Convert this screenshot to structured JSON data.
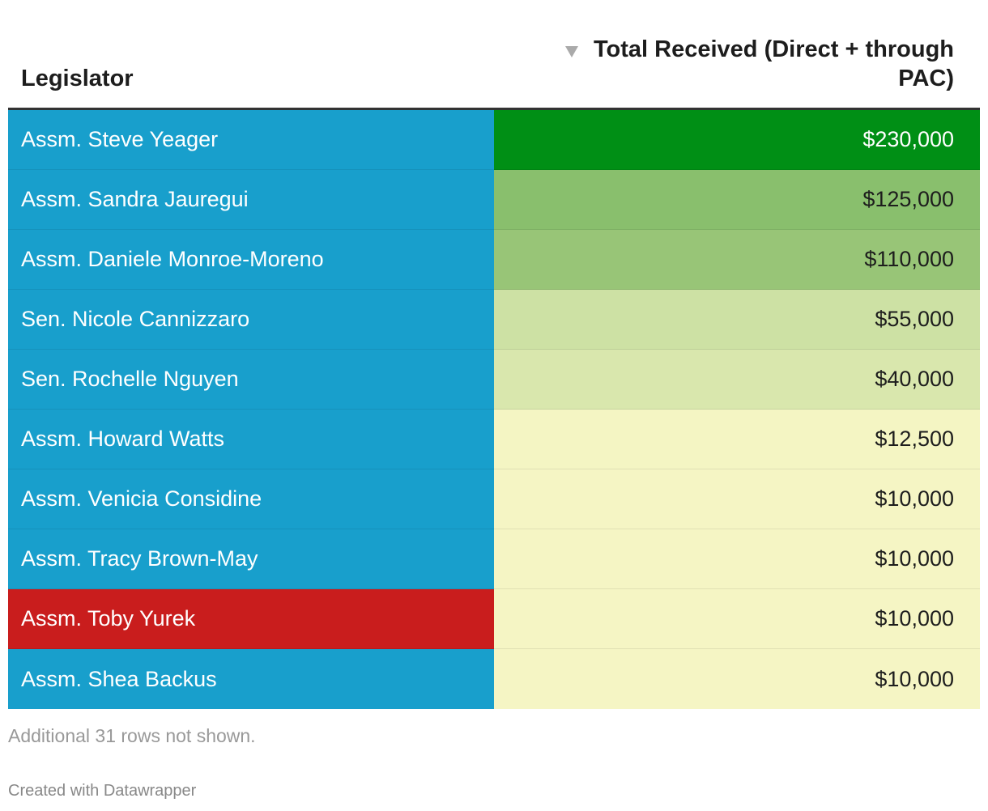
{
  "table": {
    "headers": {
      "legislator": "Legislator",
      "total": "Total Received (Direct + through PAC)"
    },
    "sort_icon": "sort-descending-icon",
    "rows": [
      {
        "name": "Assm. Steve Yeager",
        "value": "$230,000",
        "name_color": "#189fcc",
        "value_color": "#008f15",
        "text_color": "#ffffff"
      },
      {
        "name": "Assm. Sandra Jauregui",
        "value": "$125,000",
        "name_color": "#189fcc",
        "value_color": "#89bf6d",
        "text_color": "#1d1d1d"
      },
      {
        "name": "Assm. Daniele Monroe-Moreno",
        "value": "$110,000",
        "name_color": "#189fcc",
        "value_color": "#98c577",
        "text_color": "#1d1d1d"
      },
      {
        "name": "Sen. Nicole Cannizzaro",
        "value": "$55,000",
        "name_color": "#189fcc",
        "value_color": "#cde1a4",
        "text_color": "#1d1d1d"
      },
      {
        "name": "Sen. Rochelle Nguyen",
        "value": "$40,000",
        "name_color": "#189fcc",
        "value_color": "#d9e7ad",
        "text_color": "#1d1d1d"
      },
      {
        "name": "Assm. Howard Watts",
        "value": "$12,500",
        "name_color": "#189fcc",
        "value_color": "#f4f5c3",
        "text_color": "#1d1d1d"
      },
      {
        "name": "Assm. Venicia Considine",
        "value": "$10,000",
        "name_color": "#189fcc",
        "value_color": "#f5f5c4",
        "text_color": "#1d1d1d"
      },
      {
        "name": "Assm. Tracy Brown-May",
        "value": "$10,000",
        "name_color": "#189fcc",
        "value_color": "#f5f5c4",
        "text_color": "#1d1d1d"
      },
      {
        "name": "Assm. Toby Yurek",
        "value": "$10,000",
        "name_color": "#c91d1d",
        "value_color": "#f5f5c4",
        "text_color": "#1d1d1d"
      },
      {
        "name": "Assm. Shea Backus",
        "value": "$10,000",
        "name_color": "#189fcc",
        "value_color": "#f5f5c4",
        "text_color": "#1d1d1d"
      }
    ]
  },
  "footer": {
    "note": "Additional 31 rows not shown.",
    "credit": "Created with Datawrapper"
  }
}
